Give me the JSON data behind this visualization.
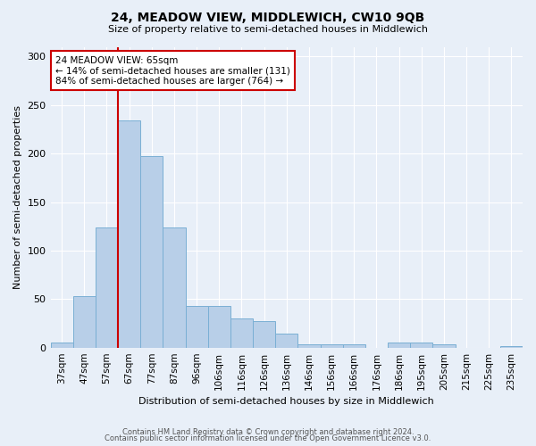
{
  "title1": "24, MEADOW VIEW, MIDDLEWICH, CW10 9QB",
  "title2": "Size of property relative to semi-detached houses in Middlewich",
  "xlabel": "Distribution of semi-detached houses by size in Middlewich",
  "ylabel": "Number of semi-detached properties",
  "categories": [
    "37sqm",
    "47sqm",
    "57sqm",
    "67sqm",
    "77sqm",
    "87sqm",
    "96sqm",
    "106sqm",
    "116sqm",
    "126sqm",
    "136sqm",
    "146sqm",
    "156sqm",
    "166sqm",
    "176sqm",
    "186sqm",
    "195sqm",
    "205sqm",
    "215sqm",
    "225sqm",
    "235sqm"
  ],
  "values": [
    5,
    53,
    124,
    234,
    197,
    124,
    43,
    43,
    30,
    27,
    14,
    3,
    3,
    3,
    0,
    5,
    5,
    3,
    0,
    0,
    2
  ],
  "bar_color": "#b8cfe8",
  "bar_edge_color": "#7aafd4",
  "background_color": "#e8eff8",
  "grid_color": "#ffffff",
  "annotation_text": "24 MEADOW VIEW: 65sqm\n← 14% of semi-detached houses are smaller (131)\n84% of semi-detached houses are larger (764) →",
  "vline_color": "#cc0000",
  "annotation_box_color": "#ffffff",
  "annotation_box_edge": "#cc0000",
  "footer1": "Contains HM Land Registry data © Crown copyright and database right 2024.",
  "footer2": "Contains public sector information licensed under the Open Government Licence v3.0.",
  "ylim": [
    0,
    310
  ],
  "yticks": [
    0,
    50,
    100,
    150,
    200,
    250,
    300
  ]
}
